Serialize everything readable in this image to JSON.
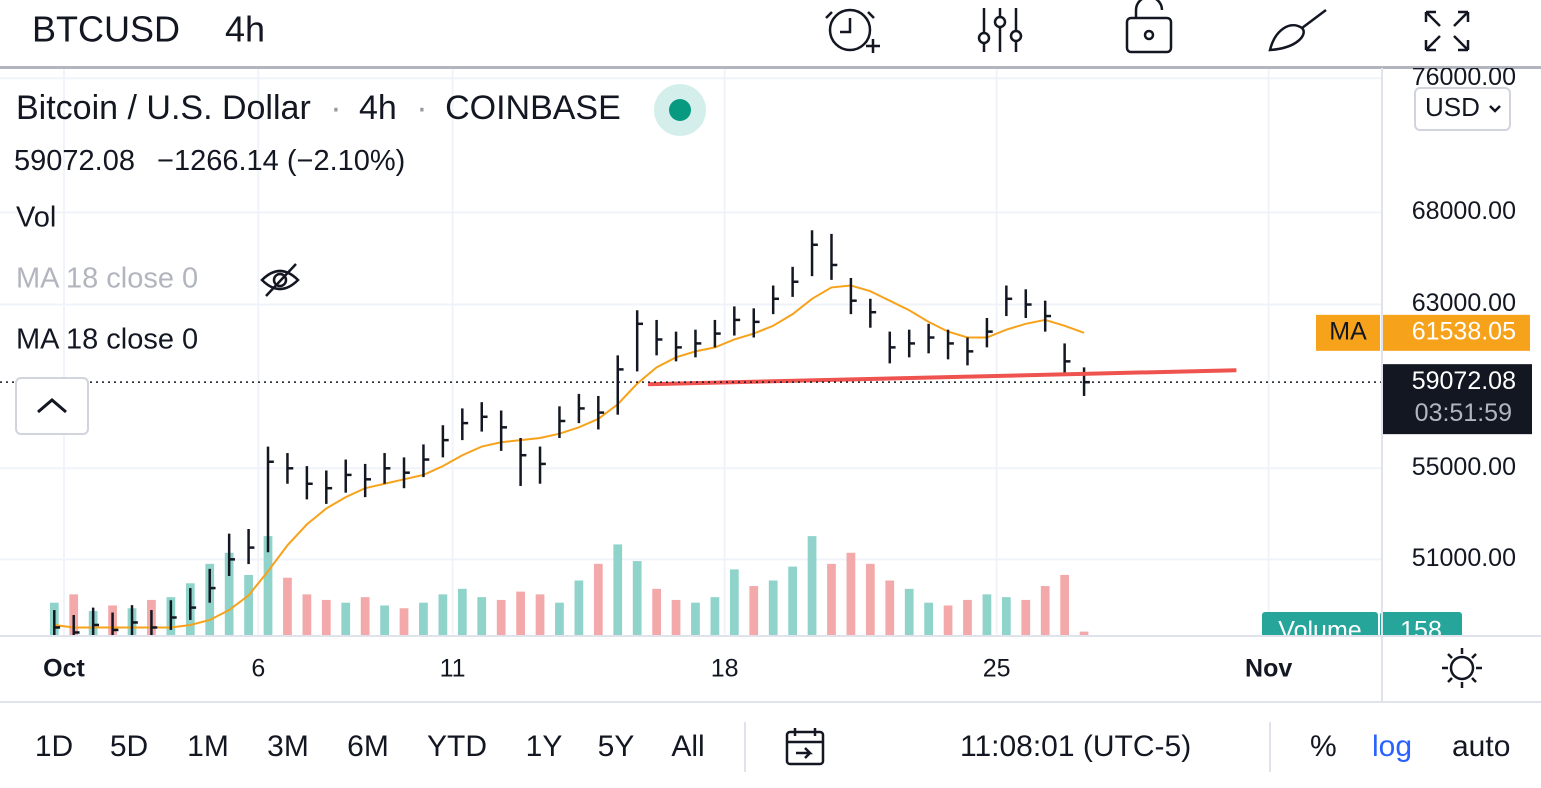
{
  "header": {
    "symbol": "BTCUSD",
    "interval": "4h"
  },
  "legend": {
    "name": "Bitcoin / U.S. Dollar",
    "separator": "·",
    "interval": "4h",
    "exchange": "COINBASE",
    "change": "−1266.14 (−2.10%)",
    "hidden_ma": "MA 18 close 0",
    "currency": "USD"
  },
  "chart_data": {
    "type": "ohlc",
    "log_scale": true,
    "grid": true,
    "bar_color": "#131722",
    "xlim": [
      -0.647,
      34.917
    ],
    "xticks": [
      {
        "value": 1,
        "label": "Oct"
      },
      6,
      11,
      18,
      25,
      {
        "value": 32,
        "label": "Nov"
      }
    ],
    "ylim": [
      47860,
      76650
    ],
    "yticks": [
      {
        "value": 76000,
        "label": "76000.00"
      },
      {
        "value": 68000,
        "label": "68000.00"
      },
      {
        "value": 63000,
        "label": "63000.00"
      },
      {
        "value": 55000,
        "label": "55000.00"
      },
      {
        "value": 51000,
        "label": "51000.00"
      }
    ],
    "x": [
      0.75,
      1.25,
      1.75,
      2.25,
      2.75,
      3.25,
      3.75,
      4.25,
      4.75,
      5.25,
      5.75,
      6.25,
      6.75,
      7.25,
      7.75,
      8.25,
      8.75,
      9.25,
      9.75,
      10.25,
      10.75,
      11.25,
      11.75,
      12.25,
      12.75,
      13.25,
      13.75,
      14.25,
      14.75,
      15.25,
      15.75,
      16.25,
      16.75,
      17.25,
      17.75,
      18.25,
      18.75,
      19.25,
      19.75,
      20.25,
      20.75,
      21.25,
      21.75,
      22.25,
      22.75,
      23.25,
      23.75,
      24.25,
      24.75,
      25.25,
      25.75,
      26.25,
      26.75,
      27.25
    ],
    "high": [
      48900,
      48700,
      49000,
      48800,
      49100,
      48900,
      49300,
      49800,
      50600,
      52100,
      52300,
      56000,
      55700,
      55100,
      54900,
      55400,
      55200,
      55700,
      55500,
      56100,
      57000,
      57800,
      58100,
      57700,
      56400,
      56000,
      57900,
      58500,
      58400,
      60400,
      62700,
      62200,
      61600,
      61700,
      62200,
      62900,
      62800,
      64000,
      65000,
      67000,
      66800,
      64400,
      63300,
      61600,
      61700,
      62000,
      61700,
      61300,
      62300,
      64000,
      63800,
      63200,
      61000,
      59800
    ],
    "low": [
      47900,
      47800,
      47900,
      47800,
      47900,
      47800,
      48100,
      48500,
      49200,
      50300,
      50800,
      51300,
      54300,
      53600,
      53400,
      53900,
      53700,
      54300,
      54100,
      54600,
      55500,
      56300,
      56700,
      55800,
      54200,
      54300,
      56400,
      57100,
      56800,
      57500,
      59600,
      60400,
      60100,
      60300,
      60800,
      61400,
      61300,
      62500,
      63400,
      64500,
      64300,
      62500,
      61800,
      60000,
      60300,
      60500,
      60200,
      59900,
      60800,
      62400,
      62300,
      61600,
      59400,
      58400
    ],
    "close": [
      48200,
      48000,
      48300,
      48100,
      48400,
      48200,
      48600,
      49000,
      49800,
      51000,
      51500,
      55300,
      55000,
      54300,
      54100,
      54700,
      54500,
      55000,
      54800,
      55400,
      56300,
      57100,
      57400,
      56900,
      55600,
      55200,
      57200,
      57800,
      57600,
      59700,
      62000,
      61200,
      60800,
      61000,
      61500,
      62200,
      62100,
      63300,
      64200,
      66200,
      65100,
      63200,
      62600,
      60800,
      61000,
      61300,
      61000,
      60600,
      61600,
      63300,
      63000,
      62400,
      60100,
      59072.08
    ],
    "ma": {
      "name": "MA 18 close 0",
      "badge": "MA",
      "color": "#f7a21b",
      "values": [
        48300,
        48200,
        48200,
        48200,
        48200,
        48200,
        48200,
        48300,
        48500,
        48900,
        49500,
        50500,
        51600,
        52500,
        53200,
        53700,
        54100,
        54300,
        54500,
        54700,
        55100,
        55600,
        56000,
        56200,
        56300,
        56400,
        56600,
        56900,
        57300,
        58000,
        59000,
        59800,
        60300,
        60600,
        60800,
        61200,
        61500,
        61900,
        62500,
        63300,
        63900,
        64000,
        63700,
        63200,
        62700,
        62100,
        61600,
        61300,
        61300,
        61700,
        62000,
        62200,
        61900,
        61538.05
      ]
    },
    "volume": {
      "name": "Vol",
      "badge": "Volume",
      "color_up": "#8fd3cb",
      "color_down": "#f3a9a9",
      "vlim": [
        0,
        4000
      ],
      "values": [
        1200,
        1500,
        900,
        1100,
        1000,
        1300,
        1400,
        1900,
        2600,
        3000,
        2200,
        3600,
        2100,
        1500,
        1300,
        1200,
        1400,
        1100,
        1000,
        1200,
        1500,
        1700,
        1400,
        1300,
        1600,
        1500,
        1200,
        2000,
        2600,
        3300,
        2700,
        1700,
        1300,
        1200,
        1400,
        2400,
        1800,
        2000,
        2500,
        3600,
        2600,
        3000,
        2600,
        2000,
        1700,
        1200,
        1100,
        1300,
        1500,
        1400,
        1300,
        1800,
        2200,
        158
      ]
    },
    "trendline": {
      "color": "#ef5350",
      "x": [
        16.03,
        31.17
      ],
      "y": [
        58970,
        59660
      ]
    },
    "countdown": "03:51:59"
  },
  "footer": {
    "ranges": [
      "1D",
      "5D",
      "1M",
      "3M",
      "6M",
      "YTD",
      "1Y",
      "5Y",
      "All"
    ],
    "time": "11:08:01 (UTC-5)",
    "percent": "%",
    "log": "log",
    "auto": "auto"
  }
}
